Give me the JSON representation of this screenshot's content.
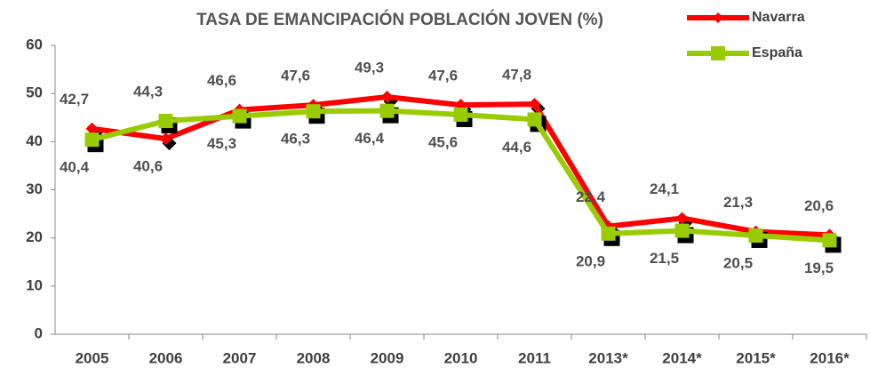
{
  "chart_data": {
    "type": "line",
    "title": "TASA DE EMANCIPACIÓN  POBLACIÓN JOVEN (%)",
    "categories": [
      "2005",
      "2006",
      "2007",
      "2008",
      "2009",
      "2010",
      "2011",
      "2013*",
      "2014*",
      "2015*",
      "2016*"
    ],
    "series": [
      {
        "name": "Navarra",
        "color": "#ff0000",
        "marker": "diamond",
        "values": [
          42.7,
          40.6,
          46.6,
          47.6,
          49.3,
          47.6,
          47.8,
          22.4,
          24.1,
          21.3,
          20.6
        ],
        "value_labels": [
          "42,7",
          "40,6",
          "46,6",
          "47,6",
          "49,3",
          "47,6",
          "47,8",
          "22,4",
          "24,1",
          "21,3",
          "20,6"
        ]
      },
      {
        "name": "España",
        "color": "#99cc00",
        "marker": "square",
        "values": [
          40.4,
          44.3,
          45.3,
          46.3,
          46.4,
          45.6,
          44.6,
          20.9,
          21.5,
          20.5,
          19.5
        ],
        "value_labels": [
          "40,4",
          "44,3",
          "45,3",
          "46,3",
          "46,4",
          "45,6",
          "44,6",
          "20,9",
          "21,5",
          "20,5",
          "19,5"
        ]
      }
    ],
    "ylim": [
      0,
      60
    ],
    "yticks": [
      0,
      10,
      20,
      30,
      40,
      50,
      60
    ],
    "grid": false,
    "legend": "top-right"
  }
}
